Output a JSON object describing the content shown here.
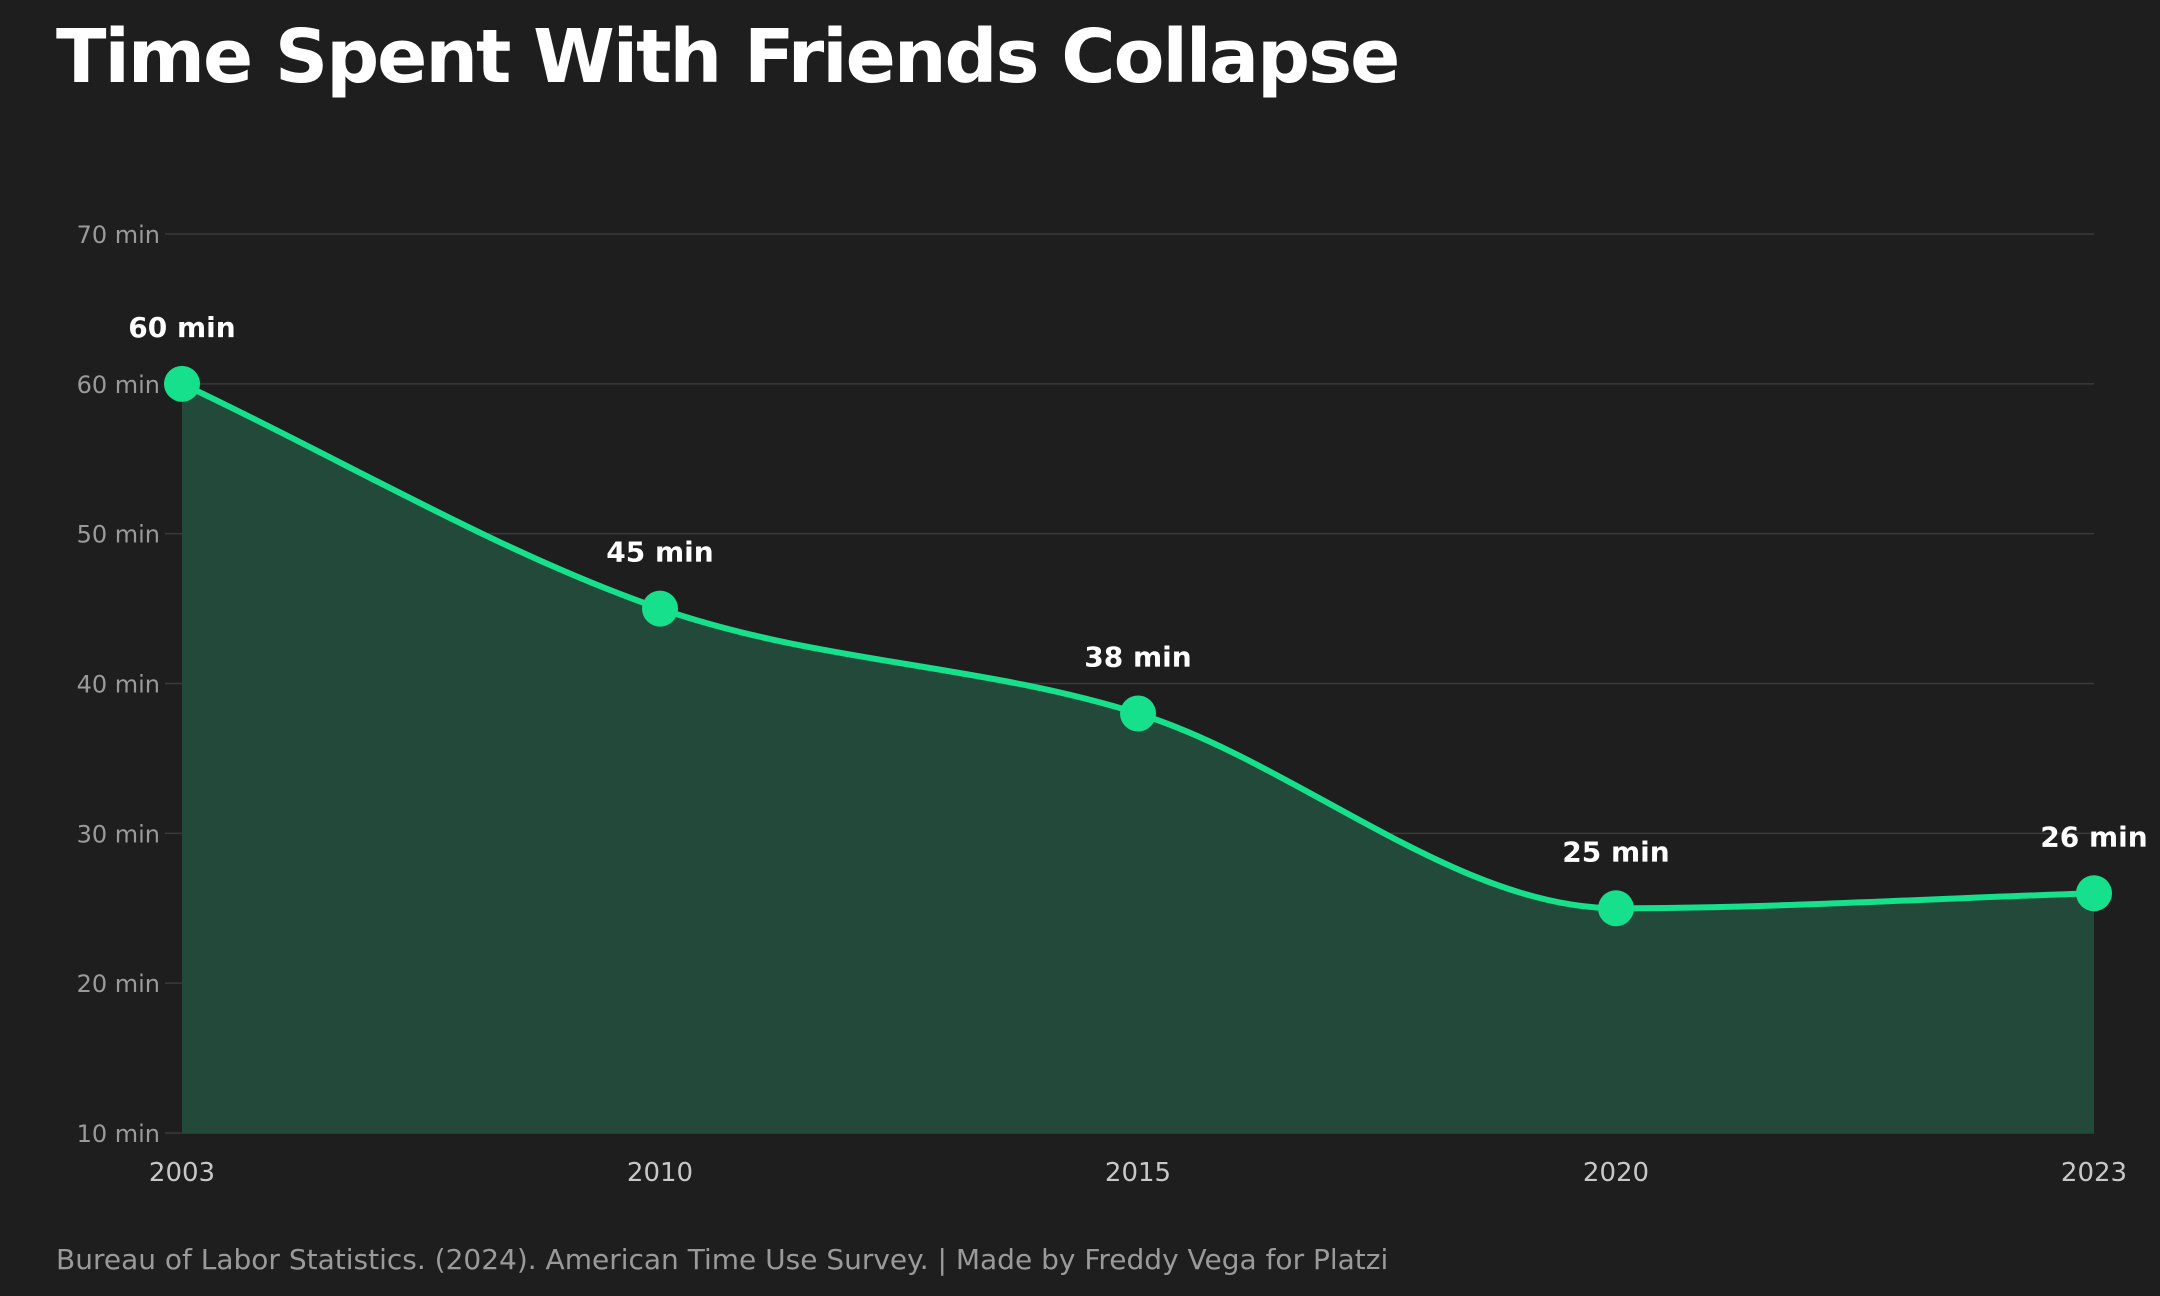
{
  "colors": {
    "background": "#1e1e1e",
    "line": "#16e08b",
    "area": "#22493a",
    "grid": "#3a3a3a",
    "tick_text": "#9a9a9a",
    "label_text": "#ffffff"
  },
  "chart_data": {
    "type": "area",
    "title": "Time Spent With Friends Collapse",
    "x": [
      "2003",
      "2010",
      "2015",
      "2020",
      "2023"
    ],
    "series": [
      {
        "values": [
          60,
          45,
          38,
          25,
          26
        ]
      }
    ],
    "data_labels": [
      "60 min",
      "45 min",
      "38 min",
      "25 min",
      "26 min"
    ],
    "ylim": [
      10,
      70
    ],
    "y_ticks": [
      {
        "value": 70,
        "label": "70 min"
      },
      {
        "value": 60,
        "label": "60 min"
      },
      {
        "value": 50,
        "label": "50 min"
      },
      {
        "value": 40,
        "label": "40 min"
      },
      {
        "value": 30,
        "label": "30 min"
      },
      {
        "value": 20,
        "label": "20 min"
      },
      {
        "value": 10,
        "label": "10 min"
      }
    ],
    "grid": true,
    "legend": "none"
  },
  "footer": {
    "source": "Bureau of Labor Statistics. (2024). American Time Use Survey. | Made by Freddy Vega for Platzi"
  }
}
